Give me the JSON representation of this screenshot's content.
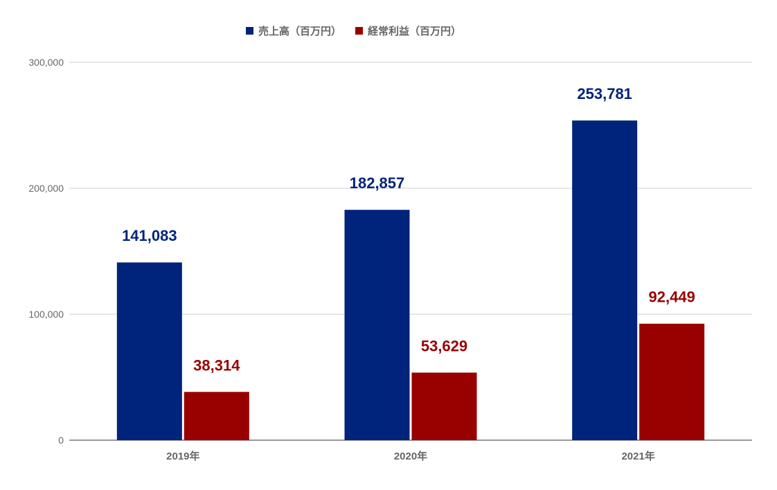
{
  "chart_data": {
    "type": "bar",
    "title": "",
    "xlabel": "",
    "ylabel": "",
    "categories": [
      "2019年",
      "2020年",
      "2021年"
    ],
    "series": [
      {
        "name": "売上高（百万円）",
        "color": "#00237b",
        "values": [
          141083,
          182857,
          253781
        ],
        "labels": [
          "141,083",
          "182,857",
          "253,781"
        ]
      },
      {
        "name": "経常利益（百万円）",
        "color": "#990000",
        "values": [
          38314,
          53629,
          92449
        ],
        "labels": [
          "38,314",
          "53,629",
          "92,449"
        ]
      }
    ],
    "ylim": [
      0,
      300000
    ],
    "yticks": [
      0,
      100000,
      200000,
      300000
    ],
    "ytick_labels": [
      "0",
      "100,000",
      "200,000",
      "300,000"
    ],
    "grid": true,
    "legend_position": "top"
  }
}
